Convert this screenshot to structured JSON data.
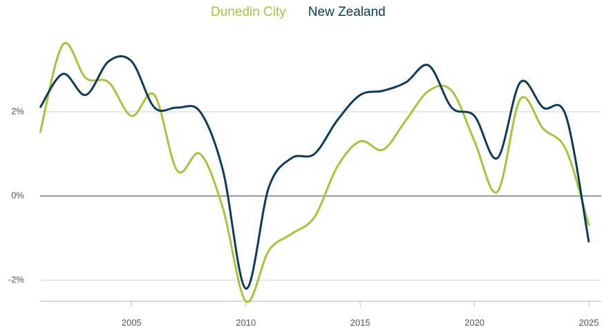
{
  "chart_data": {
    "type": "line",
    "x": [
      2001,
      2002,
      2003,
      2004,
      2005,
      2006,
      2007,
      2008,
      2009,
      2010,
      2011,
      2012,
      2013,
      2014,
      2015,
      2016,
      2017,
      2018,
      2019,
      2020,
      2021,
      2022,
      2023,
      2024,
      2025
    ],
    "series": [
      {
        "name": "Dunedin City",
        "color": "#a4c441",
        "values": [
          1.5,
          3.6,
          2.8,
          2.7,
          1.9,
          2.4,
          0.6,
          1.0,
          -0.3,
          -2.5,
          -1.3,
          -0.9,
          -0.5,
          0.7,
          1.3,
          1.1,
          1.8,
          2.5,
          2.5,
          1.3,
          0.1,
          2.3,
          1.6,
          1.1,
          -0.7
        ]
      },
      {
        "name": "New Zealand",
        "color": "#0d3a55",
        "values": [
          2.1,
          2.9,
          2.4,
          3.2,
          3.2,
          2.1,
          2.1,
          2.0,
          0.6,
          -2.2,
          0.2,
          0.9,
          1.0,
          1.8,
          2.4,
          2.5,
          2.7,
          3.1,
          2.1,
          1.9,
          0.9,
          2.7,
          2.1,
          1.9,
          -1.1
        ]
      }
    ],
    "xlim": [
      2001,
      2025
    ],
    "xticks": [
      2005,
      2010,
      2015,
      2020,
      2025
    ],
    "ylim": [
      -2.5,
      4
    ],
    "yticks": [
      {
        "value": -2,
        "label": "-2%"
      },
      {
        "value": 0,
        "label": "0%"
      },
      {
        "value": 2,
        "label": "2%"
      }
    ],
    "grid": true,
    "legend": "top"
  }
}
